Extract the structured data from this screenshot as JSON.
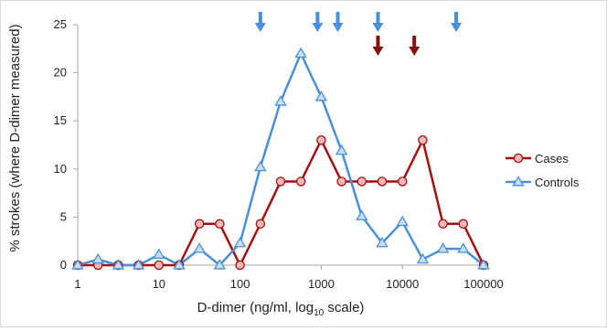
{
  "chart_data": {
    "type": "line",
    "title": "",
    "xlabel": "D-dimer (ng/ml, log",
    "xlabel_sub": "10",
    "xlabel_suffix": " scale)",
    "ylabel": "% strokes (where D-dimer measured)",
    "x_scale": "log",
    "xlim": [
      1,
      100000
    ],
    "ylim": [
      0,
      25
    ],
    "x_ticks": [
      1,
      10,
      100,
      1000,
      10000,
      100000
    ],
    "x_tick_labels": [
      "1",
      "10",
      "100",
      "1000",
      "10000",
      "100000"
    ],
    "y_ticks": [
      0,
      5,
      10,
      15,
      20,
      25
    ],
    "y_tick_labels": [
      "0",
      "5",
      "10",
      "15",
      "20",
      "25"
    ],
    "grid": false,
    "legend_position": "right",
    "x": [
      1,
      1.78,
      3.16,
      5.62,
      10,
      17.8,
      31.6,
      56.2,
      100,
      178,
      316,
      562,
      1000,
      1780,
      3160,
      5620,
      10000,
      17800,
      31600,
      56200,
      100000
    ],
    "series": [
      {
        "name": "Cases",
        "color": "#a50f0f",
        "marker": "circle",
        "marker_fill": "#f4b8b8",
        "values": [
          0,
          0,
          0,
          0,
          0,
          0,
          4.3,
          4.3,
          0,
          4.3,
          8.7,
          8.7,
          13.0,
          8.7,
          8.7,
          8.7,
          8.7,
          13.0,
          4.3,
          4.3,
          0
        ]
      },
      {
        "name": "Controls",
        "color": "#4a90d9",
        "marker": "triangle",
        "marker_fill": "#c6ddf2",
        "values": [
          0,
          0.6,
          0,
          0,
          1.1,
          0,
          1.7,
          0,
          2.3,
          10.2,
          17.0,
          22.0,
          17.5,
          11.9,
          5.1,
          2.3,
          4.5,
          0.6,
          1.7,
          1.7,
          0
        ]
      }
    ],
    "annotations": [
      {
        "kind": "arrow",
        "color": "#4a90d9",
        "x": 178
      },
      {
        "kind": "arrow",
        "color": "#4a90d9",
        "x": 900
      },
      {
        "kind": "arrow",
        "color": "#4a90d9",
        "x": 1600
      },
      {
        "kind": "arrow",
        "color": "#4a90d9",
        "x": 5000
      },
      {
        "kind": "arrow",
        "color": "#4a90d9",
        "x": 46000
      },
      {
        "kind": "arrow",
        "color": "#8b0e0e",
        "x": 5000
      },
      {
        "kind": "arrow",
        "color": "#8b0e0e",
        "x": 14000
      }
    ]
  }
}
